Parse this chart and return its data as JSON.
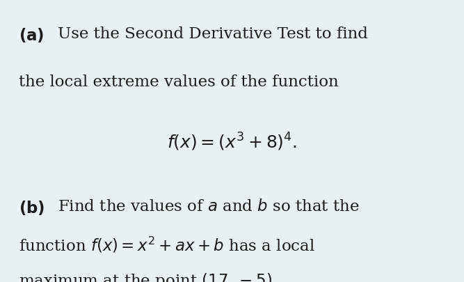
{
  "background_color": "#e8f0f4",
  "fig_width": 6.67,
  "fig_height": 4.05,
  "dpi": 100,
  "text_color": "#1c1c1c",
  "font_size_body": 16.5,
  "font_size_formula": 18
}
